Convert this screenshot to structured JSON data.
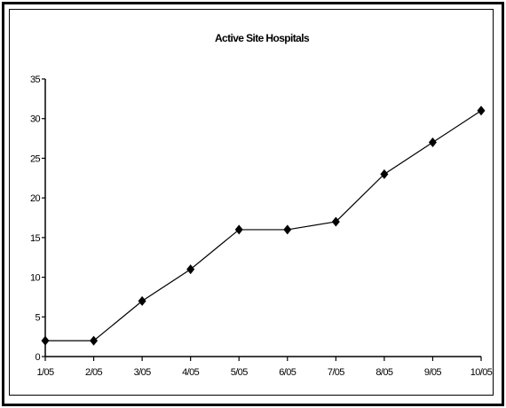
{
  "chart_data": {
    "type": "line",
    "title": "Active Site Hospitals",
    "xlabel": "",
    "ylabel": "",
    "categories": [
      "1/05",
      "2/05",
      "3/05",
      "4/05",
      "5/05",
      "6/05",
      "7/05",
      "8/05",
      "9/05",
      "10/05"
    ],
    "series": [
      {
        "values": [
          2,
          2,
          7,
          11,
          16,
          16,
          17,
          23,
          27,
          31
        ],
        "marker": "diamond",
        "color": "#000000"
      }
    ],
    "ylim": [
      0,
      35
    ],
    "yticks": [
      0,
      5,
      10,
      15,
      20,
      25,
      30,
      35
    ],
    "grid": false,
    "legend": "none"
  }
}
